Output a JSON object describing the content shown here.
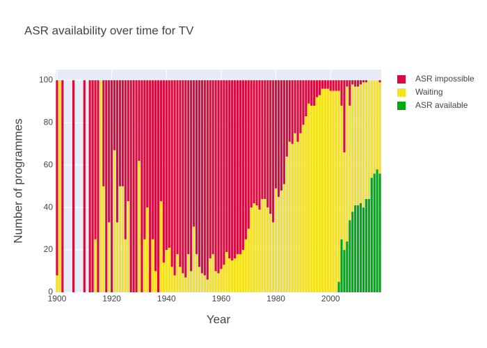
{
  "chart_data": {
    "type": "bar",
    "stacked": true,
    "title": "ASR availability over time for TV",
    "x_label": "Year",
    "y_label": "Number of programmes",
    "x": [
      1900,
      1901,
      1902,
      1903,
      1904,
      1905,
      1906,
      1907,
      1908,
      1909,
      1910,
      1911,
      1912,
      1913,
      1914,
      1915,
      1916,
      1917,
      1918,
      1919,
      1920,
      1921,
      1922,
      1923,
      1924,
      1925,
      1926,
      1927,
      1928,
      1929,
      1930,
      1931,
      1932,
      1933,
      1934,
      1935,
      1936,
      1937,
      1938,
      1939,
      1940,
      1941,
      1942,
      1943,
      1944,
      1945,
      1946,
      1947,
      1948,
      1949,
      1950,
      1951,
      1952,
      1953,
      1954,
      1955,
      1956,
      1957,
      1958,
      1959,
      1960,
      1961,
      1962,
      1963,
      1964,
      1965,
      1966,
      1967,
      1968,
      1969,
      1970,
      1971,
      1972,
      1973,
      1974,
      1975,
      1976,
      1977,
      1978,
      1979,
      1980,
      1981,
      1982,
      1983,
      1984,
      1985,
      1986,
      1987,
      1988,
      1989,
      1990,
      1991,
      1992,
      1993,
      1994,
      1995,
      1996,
      1997,
      1998,
      1999,
      2000,
      2001,
      2002,
      2003,
      2004,
      2005,
      2006,
      2007,
      2008,
      2009,
      2010,
      2011,
      2012,
      2013,
      2014,
      2015,
      2016,
      2017,
      2018
    ],
    "series": [
      {
        "name": "ASR impossible",
        "color": "#dc0a3c",
        "values": [
          92,
          0,
          100,
          0,
          0,
          0,
          100,
          0,
          0,
          0,
          100,
          0,
          100,
          100,
          75,
          100,
          0,
          50,
          100,
          67,
          100,
          33,
          67,
          50,
          50,
          75,
          57,
          100,
          100,
          100,
          38,
          100,
          75,
          60,
          100,
          75,
          90,
          100,
          57,
          86,
          80,
          79,
          88,
          92,
          82,
          88,
          91,
          93,
          82,
          90,
          69,
          82,
          88,
          91,
          92,
          94,
          84,
          82,
          90,
          91,
          89,
          87,
          81,
          84,
          85,
          84,
          82,
          82,
          80,
          75,
          70,
          60,
          58,
          59,
          61,
          56,
          56,
          60,
          63,
          67,
          51,
          55,
          52,
          49,
          36,
          29,
          30,
          25,
          29,
          25,
          21,
          17,
          11,
          12,
          12,
          8,
          7,
          4,
          4,
          4,
          5,
          5,
          5,
          5,
          12,
          34,
          3,
          12,
          2,
          3,
          3,
          2,
          1,
          1,
          0,
          0,
          0,
          0,
          1
        ]
      },
      {
        "name": "Waiting",
        "color": "#f5e11e",
        "values": [
          8,
          100,
          0,
          0,
          0,
          0,
          0,
          0,
          0,
          0,
          0,
          0,
          0,
          0,
          25,
          0,
          100,
          50,
          0,
          33,
          0,
          67,
          33,
          50,
          50,
          25,
          43,
          0,
          0,
          0,
          62,
          0,
          25,
          40,
          0,
          25,
          10,
          0,
          43,
          14,
          20,
          21,
          12,
          8,
          18,
          12,
          9,
          7,
          18,
          10,
          31,
          18,
          12,
          9,
          8,
          6,
          16,
          18,
          10,
          9,
          11,
          13,
          19,
          16,
          15,
          16,
          18,
          18,
          20,
          25,
          30,
          40,
          42,
          41,
          39,
          44,
          44,
          40,
          37,
          33,
          49,
          45,
          48,
          51,
          64,
          71,
          70,
          75,
          71,
          75,
          79,
          83,
          89,
          88,
          88,
          92,
          93,
          96,
          96,
          96,
          95,
          95,
          95,
          90,
          63,
          46,
          73,
          54,
          60,
          56,
          56,
          56,
          59,
          55,
          56,
          46,
          44,
          42,
          43
        ]
      },
      {
        "name": "ASR available",
        "color": "#00a814",
        "values": [
          0,
          0,
          0,
          0,
          0,
          0,
          0,
          0,
          0,
          0,
          0,
          0,
          0,
          0,
          0,
          0,
          0,
          0,
          0,
          0,
          0,
          0,
          0,
          0,
          0,
          0,
          0,
          0,
          0,
          0,
          0,
          0,
          0,
          0,
          0,
          0,
          0,
          0,
          0,
          0,
          0,
          0,
          0,
          0,
          0,
          0,
          0,
          0,
          0,
          0,
          0,
          0,
          0,
          0,
          0,
          0,
          0,
          0,
          0,
          0,
          0,
          0,
          0,
          0,
          0,
          0,
          0,
          0,
          0,
          0,
          0,
          0,
          0,
          0,
          0,
          0,
          0,
          0,
          0,
          0,
          0,
          0,
          0,
          0,
          0,
          0,
          0,
          0,
          0,
          0,
          0,
          0,
          0,
          0,
          0,
          0,
          0,
          0,
          0,
          0,
          0,
          0,
          0,
          5,
          25,
          20,
          24,
          34,
          38,
          41,
          41,
          42,
          40,
          44,
          44,
          54,
          56,
          58,
          56
        ]
      }
    ],
    "xlim": [
      1899.5,
      2018.5
    ],
    "xticks": [
      1900,
      1920,
      1940,
      1960,
      1980,
      2000
    ],
    "ylim": [
      0,
      105
    ],
    "yticks": [
      0,
      20,
      40,
      60,
      80,
      100
    ],
    "grid": true,
    "legend": "right"
  }
}
